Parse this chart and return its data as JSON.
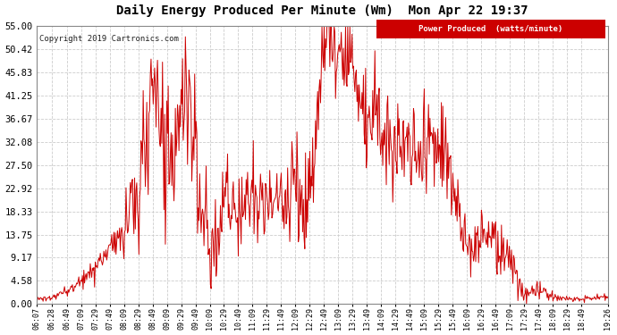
{
  "title": "Daily Energy Produced Per Minute (Wm)  Mon Apr 22 19:37",
  "copyright": "Copyright 2019 Cartronics.com",
  "legend_text": "Power Produced  (watts/minute)",
  "legend_bg": "#cc0000",
  "legend_fg": "#ffffff",
  "line_color": "#cc0000",
  "bg_color": "#ffffff",
  "grid_color": "#cccccc",
  "title_color": "#000000",
  "ylim": [
    0,
    55.0
  ],
  "yticks": [
    0.0,
    4.58,
    9.17,
    13.75,
    18.33,
    22.92,
    27.5,
    32.08,
    36.67,
    41.25,
    45.83,
    50.42,
    55.0
  ],
  "xtick_labels": [
    "06:07",
    "06:28",
    "06:49",
    "07:09",
    "07:29",
    "07:49",
    "08:09",
    "08:29",
    "08:49",
    "09:09",
    "09:29",
    "09:49",
    "10:09",
    "10:29",
    "10:49",
    "11:09",
    "11:29",
    "11:49",
    "12:09",
    "12:29",
    "12:49",
    "13:09",
    "13:29",
    "13:49",
    "14:09",
    "14:29",
    "14:49",
    "15:09",
    "15:29",
    "15:49",
    "16:09",
    "16:29",
    "16:49",
    "17:09",
    "17:29",
    "17:49",
    "18:09",
    "18:29",
    "18:49",
    "19:26"
  ],
  "key_values": {
    "06:07": 1.0,
    "06:28": 1.2,
    "06:49": 2.5,
    "07:09": 4.5,
    "07:29": 7.0,
    "07:49": 11.0,
    "08:09": 15.0,
    "08:29": 18.0,
    "08:49": 44.0,
    "09:09": 30.0,
    "09:29": 38.0,
    "09:49": 28.0,
    "10:09": 7.5,
    "10:29": 20.0,
    "10:49": 18.0,
    "11:09": 21.0,
    "11:29": 20.0,
    "11:49": 20.5,
    "12:09": 22.0,
    "12:29": 21.0,
    "12:49": 54.0,
    "13:09": 51.0,
    "13:29": 49.0,
    "13:49": 36.0,
    "14:09": 38.0,
    "14:29": 30.0,
    "14:49": 31.0,
    "15:09": 31.0,
    "15:29": 30.0,
    "15:49": 24.0,
    "16:09": 10.5,
    "16:29": 13.5,
    "16:49": 14.0,
    "17:09": 8.0,
    "17:29": 1.5,
    "17:49": 2.5,
    "18:09": 1.5,
    "18:29": 1.0,
    "18:49": 1.0,
    "19:26": 1.5
  }
}
